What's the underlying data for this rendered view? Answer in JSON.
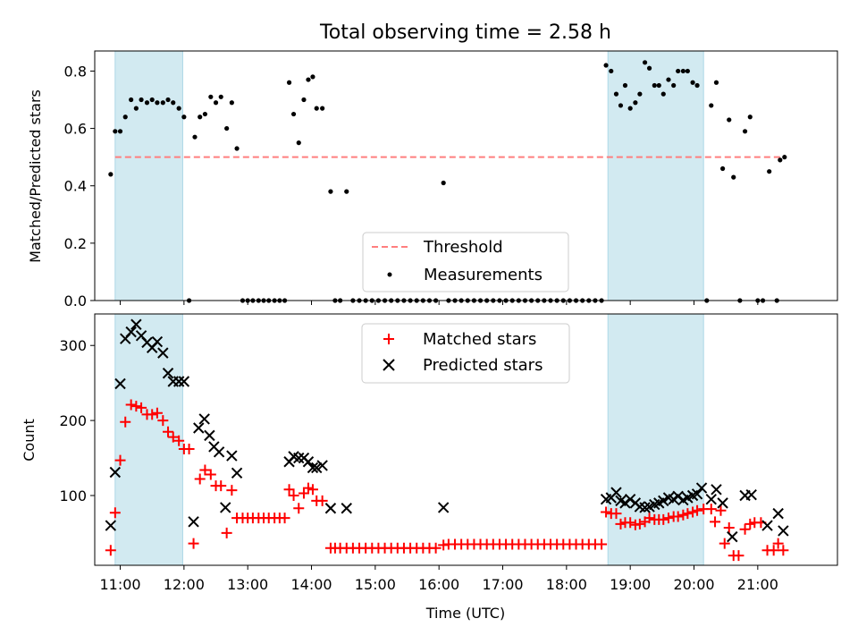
{
  "chart_data": {
    "title": "Total observing time = 2.58 h",
    "xlabel": "Time (UTC)",
    "xlim": [
      10.6,
      22.25
    ],
    "xticks": [
      "11:00",
      "12:00",
      "13:00",
      "14:00",
      "15:00",
      "16:00",
      "17:00",
      "18:00",
      "19:00",
      "20:00",
      "21:00"
    ],
    "xtick_values": [
      11,
      12,
      13,
      14,
      15,
      16,
      17,
      18,
      19,
      20,
      21
    ],
    "shaded_intervals": [
      [
        10.92,
        11.98
      ],
      [
        18.65,
        20.15
      ]
    ],
    "shade_color": "#add8e6",
    "top": {
      "type": "scatter",
      "ylabel": "Matched/Predicted stars",
      "ylim": [
        0,
        0.87
      ],
      "yticks": [
        "0.0",
        "0.2",
        "0.4",
        "0.6",
        "0.8"
      ],
      "ytick_values": [
        0,
        0.2,
        0.4,
        0.6,
        0.8
      ],
      "threshold": {
        "name": "Threshold",
        "value": 0.5,
        "x_range": [
          10.92,
          21.42
        ],
        "color": "#ff7f7f"
      },
      "measurements_name": "Measurements",
      "measurements": [
        [
          10.85,
          0.44
        ],
        [
          10.92,
          0.59
        ],
        [
          11.0,
          0.59
        ],
        [
          11.08,
          0.64
        ],
        [
          11.17,
          0.7
        ],
        [
          11.25,
          0.67
        ],
        [
          11.33,
          0.7
        ],
        [
          11.42,
          0.69
        ],
        [
          11.5,
          0.7
        ],
        [
          11.58,
          0.69
        ],
        [
          11.67,
          0.69
        ],
        [
          11.75,
          0.7
        ],
        [
          11.83,
          0.69
        ],
        [
          11.92,
          0.67
        ],
        [
          12.0,
          0.64
        ],
        [
          12.08,
          0.0
        ],
        [
          12.17,
          0.57
        ],
        [
          12.25,
          0.64
        ],
        [
          12.33,
          0.65
        ],
        [
          12.42,
          0.71
        ],
        [
          12.5,
          0.69
        ],
        [
          12.58,
          0.71
        ],
        [
          12.67,
          0.6
        ],
        [
          12.75,
          0.69
        ],
        [
          12.83,
          0.53
        ],
        [
          12.92,
          0.0
        ],
        [
          13.0,
          0.0
        ],
        [
          13.08,
          0.0
        ],
        [
          13.17,
          0.0
        ],
        [
          13.25,
          0.0
        ],
        [
          13.33,
          0.0
        ],
        [
          13.42,
          0.0
        ],
        [
          13.5,
          0.0
        ],
        [
          13.58,
          0.0
        ],
        [
          13.65,
          0.76
        ],
        [
          13.72,
          0.65
        ],
        [
          13.8,
          0.55
        ],
        [
          13.88,
          0.7
        ],
        [
          13.95,
          0.77
        ],
        [
          14.02,
          0.78
        ],
        [
          14.08,
          0.67
        ],
        [
          14.17,
          0.67
        ],
        [
          14.3,
          0.38
        ],
        [
          14.37,
          0.0
        ],
        [
          14.45,
          0.0
        ],
        [
          14.55,
          0.38
        ],
        [
          14.65,
          0.0
        ],
        [
          14.75,
          0.0
        ],
        [
          14.85,
          0.0
        ],
        [
          14.95,
          0.0
        ],
        [
          15.05,
          0.0
        ],
        [
          15.15,
          0.0
        ],
        [
          15.25,
          0.0
        ],
        [
          15.35,
          0.0
        ],
        [
          15.45,
          0.0
        ],
        [
          15.55,
          0.0
        ],
        [
          15.65,
          0.0
        ],
        [
          15.75,
          0.0
        ],
        [
          15.85,
          0.0
        ],
        [
          15.95,
          0.0
        ],
        [
          16.07,
          0.41
        ],
        [
          16.15,
          0.0
        ],
        [
          16.25,
          0.0
        ],
        [
          16.35,
          0.0
        ],
        [
          16.45,
          0.0
        ],
        [
          16.55,
          0.0
        ],
        [
          16.65,
          0.0
        ],
        [
          16.75,
          0.0
        ],
        [
          16.85,
          0.0
        ],
        [
          16.95,
          0.0
        ],
        [
          17.05,
          0.0
        ],
        [
          17.15,
          0.0
        ],
        [
          17.25,
          0.0
        ],
        [
          17.35,
          0.0
        ],
        [
          17.45,
          0.0
        ],
        [
          17.55,
          0.0
        ],
        [
          17.65,
          0.0
        ],
        [
          17.75,
          0.0
        ],
        [
          17.85,
          0.0
        ],
        [
          17.95,
          0.0
        ],
        [
          18.05,
          0.0
        ],
        [
          18.15,
          0.0
        ],
        [
          18.25,
          0.0
        ],
        [
          18.35,
          0.0
        ],
        [
          18.45,
          0.0
        ],
        [
          18.55,
          0.0
        ],
        [
          18.62,
          0.82
        ],
        [
          18.7,
          0.8
        ],
        [
          18.78,
          0.72
        ],
        [
          18.85,
          0.68
        ],
        [
          18.92,
          0.75
        ],
        [
          19.0,
          0.67
        ],
        [
          19.08,
          0.69
        ],
        [
          19.15,
          0.72
        ],
        [
          19.23,
          0.83
        ],
        [
          19.3,
          0.81
        ],
        [
          19.38,
          0.75
        ],
        [
          19.45,
          0.75
        ],
        [
          19.52,
          0.72
        ],
        [
          19.6,
          0.77
        ],
        [
          19.68,
          0.75
        ],
        [
          19.75,
          0.8
        ],
        [
          19.83,
          0.8
        ],
        [
          19.9,
          0.8
        ],
        [
          19.98,
          0.76
        ],
        [
          20.05,
          0.75
        ],
        [
          20.2,
          0.0
        ],
        [
          20.27,
          0.68
        ],
        [
          20.35,
          0.76
        ],
        [
          20.45,
          0.46
        ],
        [
          20.55,
          0.63
        ],
        [
          20.62,
          0.43
        ],
        [
          20.72,
          0.0
        ],
        [
          20.8,
          0.59
        ],
        [
          20.88,
          0.64
        ],
        [
          21.0,
          0.0
        ],
        [
          21.08,
          0.0
        ],
        [
          21.18,
          0.45
        ],
        [
          21.3,
          0.0
        ],
        [
          21.35,
          0.49
        ],
        [
          21.42,
          0.5
        ]
      ]
    },
    "bottom": {
      "type": "scatter",
      "ylabel": "Count",
      "ylim": [
        7,
        342
      ],
      "yticks": [
        "100",
        "200",
        "300"
      ],
      "ytick_values": [
        100,
        200,
        300
      ],
      "matched_name": "Matched stars",
      "predicted_name": "Predicted stars",
      "matched_color": "#ff0000",
      "predicted_color": "#000000",
      "matched": [
        [
          10.85,
          27
        ],
        [
          10.92,
          77
        ],
        [
          11.0,
          147
        ],
        [
          11.08,
          198
        ],
        [
          11.17,
          221
        ],
        [
          11.25,
          219
        ],
        [
          11.33,
          217
        ],
        [
          11.42,
          208
        ],
        [
          11.5,
          208
        ],
        [
          11.58,
          210
        ],
        [
          11.67,
          200
        ],
        [
          11.75,
          185
        ],
        [
          11.83,
          178
        ],
        [
          11.92,
          173
        ],
        [
          12.0,
          162
        ],
        [
          12.08,
          162
        ],
        [
          12.15,
          36
        ],
        [
          12.25,
          122
        ],
        [
          12.33,
          134
        ],
        [
          12.42,
          128
        ],
        [
          12.5,
          113
        ],
        [
          12.58,
          113
        ],
        [
          12.67,
          50
        ],
        [
          12.75,
          107
        ],
        [
          12.83,
          70
        ],
        [
          12.92,
          70
        ],
        [
          13.0,
          70
        ],
        [
          13.08,
          70
        ],
        [
          13.17,
          70
        ],
        [
          13.25,
          70
        ],
        [
          13.33,
          70
        ],
        [
          13.42,
          70
        ],
        [
          13.5,
          70
        ],
        [
          13.58,
          70
        ],
        [
          13.65,
          108
        ],
        [
          13.72,
          100
        ],
        [
          13.8,
          83
        ],
        [
          13.88,
          103
        ],
        [
          13.95,
          110
        ],
        [
          14.02,
          108
        ],
        [
          14.08,
          93
        ],
        [
          14.17,
          93
        ],
        [
          14.3,
          30
        ],
        [
          14.37,
          30
        ],
        [
          14.45,
          30
        ],
        [
          14.55,
          30
        ],
        [
          14.65,
          30
        ],
        [
          14.75,
          30
        ],
        [
          14.85,
          30
        ],
        [
          14.95,
          30
        ],
        [
          15.05,
          30
        ],
        [
          15.15,
          30
        ],
        [
          15.25,
          30
        ],
        [
          15.35,
          30
        ],
        [
          15.45,
          30
        ],
        [
          15.55,
          30
        ],
        [
          15.65,
          30
        ],
        [
          15.75,
          30
        ],
        [
          15.85,
          30
        ],
        [
          15.95,
          30
        ],
        [
          16.07,
          34
        ],
        [
          16.15,
          35
        ],
        [
          16.25,
          35
        ],
        [
          16.35,
          35
        ],
        [
          16.45,
          35
        ],
        [
          16.55,
          35
        ],
        [
          16.65,
          35
        ],
        [
          16.75,
          35
        ],
        [
          16.85,
          35
        ],
        [
          16.95,
          35
        ],
        [
          17.05,
          35
        ],
        [
          17.15,
          35
        ],
        [
          17.25,
          35
        ],
        [
          17.35,
          35
        ],
        [
          17.45,
          35
        ],
        [
          17.55,
          35
        ],
        [
          17.65,
          35
        ],
        [
          17.75,
          35
        ],
        [
          17.85,
          35
        ],
        [
          17.95,
          35
        ],
        [
          18.05,
          35
        ],
        [
          18.15,
          35
        ],
        [
          18.25,
          35
        ],
        [
          18.35,
          35
        ],
        [
          18.45,
          35
        ],
        [
          18.55,
          35
        ],
        [
          18.62,
          78
        ],
        [
          18.7,
          76
        ],
        [
          18.78,
          76
        ],
        [
          18.85,
          62
        ],
        [
          18.92,
          64
        ],
        [
          19.0,
          64
        ],
        [
          19.08,
          61
        ],
        [
          19.15,
          62
        ],
        [
          19.23,
          65
        ],
        [
          19.3,
          70
        ],
        [
          19.38,
          68
        ],
        [
          19.45,
          68
        ],
        [
          19.52,
          68
        ],
        [
          19.6,
          70
        ],
        [
          19.68,
          72
        ],
        [
          19.75,
          72
        ],
        [
          19.83,
          74
        ],
        [
          19.9,
          76
        ],
        [
          19.98,
          78
        ],
        [
          20.05,
          80
        ],
        [
          20.15,
          82
        ],
        [
          20.27,
          82
        ],
        [
          20.33,
          65
        ],
        [
          20.42,
          80
        ],
        [
          20.48,
          36
        ],
        [
          20.55,
          57
        ],
        [
          20.62,
          20
        ],
        [
          20.7,
          20
        ],
        [
          20.8,
          55
        ],
        [
          20.88,
          62
        ],
        [
          20.95,
          64
        ],
        [
          21.05,
          64
        ],
        [
          21.15,
          27
        ],
        [
          21.25,
          27
        ],
        [
          21.32,
          36
        ],
        [
          21.4,
          27
        ]
      ],
      "predicted": [
        [
          10.85,
          60
        ],
        [
          10.92,
          131
        ],
        [
          11.0,
          249
        ],
        [
          11.08,
          309
        ],
        [
          11.17,
          318
        ],
        [
          11.25,
          328
        ],
        [
          11.33,
          313
        ],
        [
          11.42,
          304
        ],
        [
          11.5,
          297
        ],
        [
          11.58,
          305
        ],
        [
          11.67,
          290
        ],
        [
          11.75,
          263
        ],
        [
          11.83,
          252
        ],
        [
          11.92,
          252
        ],
        [
          12.0,
          252
        ],
        [
          12.15,
          65
        ],
        [
          12.23,
          190
        ],
        [
          12.32,
          202
        ],
        [
          12.4,
          180
        ],
        [
          12.47,
          165
        ],
        [
          12.55,
          158
        ],
        [
          12.65,
          84
        ],
        [
          12.75,
          153
        ],
        [
          12.83,
          130
        ],
        [
          13.65,
          145
        ],
        [
          13.72,
          152
        ],
        [
          13.8,
          150
        ],
        [
          13.88,
          150
        ],
        [
          13.95,
          145
        ],
        [
          14.02,
          137
        ],
        [
          14.08,
          137
        ],
        [
          14.17,
          140
        ],
        [
          14.3,
          83
        ],
        [
          14.55,
          83
        ],
        [
          16.07,
          84
        ],
        [
          18.62,
          95
        ],
        [
          18.7,
          97
        ],
        [
          18.78,
          104
        ],
        [
          18.85,
          93
        ],
        [
          18.92,
          90
        ],
        [
          19.0,
          95
        ],
        [
          19.08,
          90
        ],
        [
          19.15,
          85
        ],
        [
          19.23,
          84
        ],
        [
          19.3,
          85
        ],
        [
          19.38,
          88
        ],
        [
          19.45,
          90
        ],
        [
          19.52,
          93
        ],
        [
          19.6,
          97
        ],
        [
          19.68,
          95
        ],
        [
          19.75,
          99
        ],
        [
          19.83,
          94
        ],
        [
          19.9,
          97
        ],
        [
          19.98,
          100
        ],
        [
          20.05,
          102
        ],
        [
          20.12,
          110
        ],
        [
          20.27,
          95
        ],
        [
          20.35,
          108
        ],
        [
          20.45,
          90
        ],
        [
          20.6,
          45
        ],
        [
          20.8,
          100
        ],
        [
          20.9,
          101
        ],
        [
          21.15,
          60
        ],
        [
          21.32,
          76
        ],
        [
          21.4,
          53
        ]
      ]
    }
  }
}
